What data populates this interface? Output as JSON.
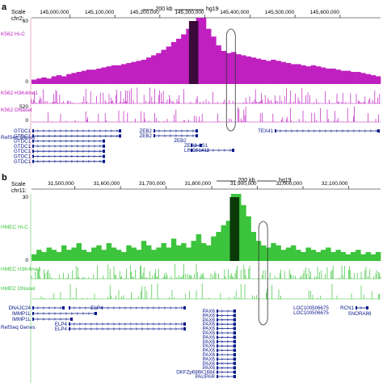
{
  "chart_data": [
    {
      "panel": "a",
      "type": "area",
      "color": "#c020c0",
      "highlight_color": "#3a0a3a",
      "ruler": {
        "scale_label": "200 kb",
        "assembly": "hg19",
        "chrom": "chr2:",
        "scale_prefix": "Scale",
        "ticks": [
          "145,000,000",
          "145,100,000",
          "145,200,000",
          "145,300,000",
          "145,400,000",
          "145,500,000",
          "145,600,000"
        ],
        "tick_values": [
          145000000,
          145100000,
          145200000,
          145300000,
          145400000,
          145500000,
          145600000
        ],
        "xlim": [
          144915000,
          145690000
        ]
      },
      "tracks": [
        {
          "name": "K562 Hi-C",
          "kind": "bars",
          "ylim": [
            0,
            60
          ],
          "ytick_top": "60",
          "ytick_bottom": "0",
          "values": [
            4,
            5,
            6,
            5,
            7,
            8,
            7,
            9,
            10,
            11,
            12,
            13,
            13,
            14,
            15,
            16,
            17,
            17,
            18,
            19,
            20,
            21,
            22,
            24,
            26,
            28,
            31,
            34,
            38,
            41,
            45,
            50,
            55,
            60,
            60,
            50,
            43,
            35,
            30,
            28,
            29,
            27,
            26,
            25,
            24,
            23,
            22,
            21,
            22,
            21,
            20,
            19,
            18,
            18,
            17,
            16,
            17,
            16,
            15,
            14,
            14,
            13,
            12,
            12,
            11,
            11,
            10,
            9,
            8,
            7
          ],
          "highlight_range": [
            145270000,
            145280000
          ]
        },
        {
          "name": "K562 H3K4me1",
          "kind": "signal",
          "ylim": [
            0,
            40
          ]
        },
        {
          "name": "K562 DNaseI",
          "kind": "signal",
          "ylim": [
            0,
            520
          ],
          "ytick_top": "520",
          "ytick_bottom": "0"
        }
      ],
      "ellipse_range": [
        145355000,
        145365000
      ],
      "refseq_label": "RefSeq Genes",
      "genes_left": [
        "GTDC1",
        "GTDC1",
        "GTDC1",
        "GTDC1",
        "GTDC1",
        "GTDC1",
        "GTDC1"
      ],
      "genes_mid": [
        "ZEB2",
        "ZEB2",
        "ZEB2",
        "ZEB2-AS1",
        "LINC01412"
      ],
      "genes_right": [
        "TEX41"
      ]
    },
    {
      "panel": "b",
      "type": "area",
      "color": "#3cc43c",
      "highlight_color": "#0a3a0a",
      "ruler": {
        "scale_label": "200 kb",
        "assembly": "hg19",
        "chrom": "chr11:",
        "scale_prefix": "Scale",
        "ticks": [
          "31,500,000",
          "31,600,000",
          "31,700,000",
          "31,800,000",
          "31,900,000",
          "32,000,000",
          "32,100,000"
        ],
        "tick_values": [
          31500000,
          31600000,
          31700000,
          31800000,
          31900000,
          32000000,
          32100000
        ],
        "xlim": [
          31405000,
          32170000
        ]
      },
      "tracks": [
        {
          "name": "HMEC Hi-C",
          "kind": "bars",
          "ylim": [
            0,
            30
          ],
          "ytick_top": "30",
          "ytick_bottom": "0",
          "values": [
            3,
            5,
            4,
            6,
            5,
            4,
            7,
            5,
            6,
            8,
            5,
            4,
            6,
            7,
            5,
            8,
            6,
            5,
            4,
            7,
            6,
            5,
            9,
            7,
            5,
            6,
            8,
            6,
            10,
            7,
            8,
            6,
            9,
            12,
            8,
            7,
            11,
            13,
            16,
            18,
            30,
            30,
            25,
            20,
            13,
            9,
            7,
            6,
            8,
            7,
            5,
            6,
            7,
            5,
            4,
            6,
            5,
            4,
            5,
            6,
            4,
            5,
            4,
            3,
            4,
            5,
            3,
            4,
            3,
            4
          ],
          "highlight_range": [
            31845000,
            31855000
          ]
        },
        {
          "name": "HMEC H3K4me1",
          "kind": "signal",
          "ylim": [
            0,
            40
          ]
        },
        {
          "name": "HMEC DNaseI",
          "kind": "signal",
          "ylim": [
            0,
            40
          ]
        }
      ],
      "ellipse_range": [
        31910000,
        31920000
      ],
      "refseq_label": "RefSeq Genes",
      "genes_left": [
        "DNAJC24",
        "IMMP1L",
        "IMMP1L"
      ],
      "genes_elp": [
        "ELP4",
        "ELP4",
        "ELP4"
      ],
      "genes_pax": [
        "PAX6",
        "PAX6",
        "PAX6",
        "PAX6",
        "PAX6",
        "PAX6",
        "PAX6",
        "PAX6",
        "PAX6",
        "PAX6",
        "PAX6",
        "PAX6",
        "PAX6",
        "PAX6",
        "DKFZp686K1684",
        "PAUPAR"
      ],
      "genes_right": [
        "LOC100506675",
        "LOC100506675",
        "RCN1",
        "SNORA88"
      ]
    }
  ]
}
